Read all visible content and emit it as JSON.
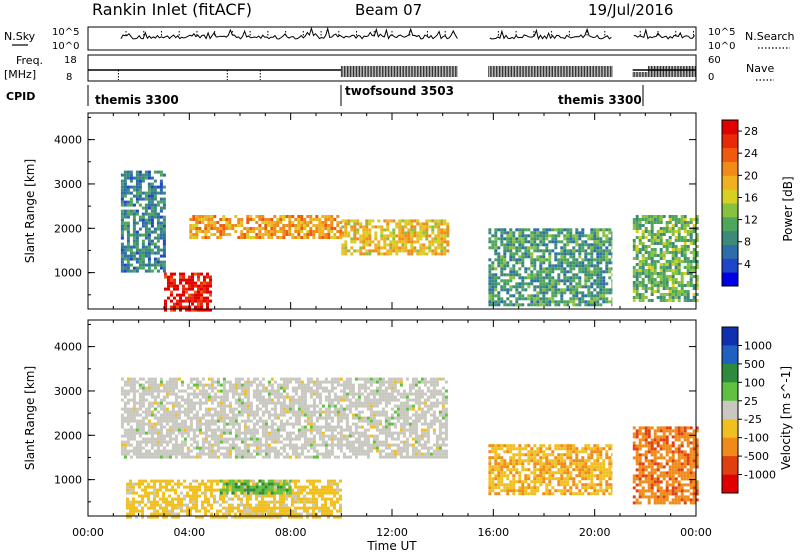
{
  "header": {
    "title": "Rankin Inlet (fitACF)",
    "beam": "Beam 07",
    "date": "19/Jul/2016"
  },
  "top_panel": {
    "nsky_label": "N.Sky",
    "nsky_ticks": [
      "10^5",
      "10^0"
    ],
    "nsearch_ticks": [
      "10^5",
      "10^0"
    ],
    "nsearch_label": "N.Search",
    "freq_label_1": "Freq.",
    "freq_label_2": "[MHz]",
    "freq_ticks": [
      "18",
      "8"
    ],
    "nave_ticks": [
      "60",
      "0"
    ],
    "nave_label": "Nave",
    "cpid_label": "CPID",
    "cpid_modes": [
      {
        "name": "themis 3300",
        "start_h": 0
      },
      {
        "name": "twofsound 3503",
        "start_h": 10
      },
      {
        "name": "themis 3300",
        "start_h": 21.6
      }
    ]
  },
  "time_axis": {
    "ticks": [
      "00:00",
      "04:00",
      "08:00",
      "12:00",
      "16:00",
      "20:00",
      "00:00"
    ],
    "xlabel": "Time UT"
  },
  "chart_data": [
    {
      "type": "heatmap",
      "title": "Power",
      "xlabel": "Time UT",
      "ylabel": "Slant Range [km]",
      "xlim_hours": [
        0,
        24
      ],
      "ylim_km": [
        180,
        4600
      ],
      "yticks": [
        "1000",
        "2000",
        "3000",
        "4000"
      ],
      "colorbar": {
        "label": "Power [dB]",
        "ticks": [
          "4",
          "8",
          "12",
          "16",
          "20",
          "24",
          "28"
        ],
        "range": [
          0,
          30
        ],
        "colors": [
          "#0000e6",
          "#1e46c8",
          "#2e6ea8",
          "#3d8a7a",
          "#4ea65a",
          "#88c040",
          "#d8d020",
          "#f0b020",
          "#f08a18",
          "#f05a10",
          "#e82a08",
          "#e00000"
        ]
      },
      "data_gaps_hours": [
        [
          14.6,
          15.8
        ],
        [
          20.7,
          21.5
        ]
      ],
      "echo_regions": [
        {
          "t": [
            1.3,
            3.0
          ],
          "range_km": [
            1000,
            3300
          ],
          "value_db": 8
        },
        {
          "t": [
            3.0,
            4.8
          ],
          "range_km": [
            180,
            1000
          ],
          "value_db": 28
        },
        {
          "t": [
            4.0,
            10.0
          ],
          "range_km": [
            1800,
            2300
          ],
          "value_db": 20
        },
        {
          "t": [
            10.0,
            14.2
          ],
          "range_km": [
            1400,
            2200
          ],
          "value_db": 18
        },
        {
          "t": [
            15.8,
            20.7
          ],
          "range_km": [
            300,
            2000
          ],
          "value_db": 10
        },
        {
          "t": [
            21.5,
            24.0
          ],
          "range_km": [
            400,
            2300
          ],
          "value_db": 12
        }
      ]
    },
    {
      "type": "heatmap",
      "title": "Velocity",
      "xlabel": "Time UT",
      "ylabel": "Slant Range [km]",
      "xlim_hours": [
        0,
        24
      ],
      "ylim_km": [
        180,
        4600
      ],
      "yticks": [
        "1000",
        "2000",
        "3000",
        "4000"
      ],
      "colorbar": {
        "label": "Velocity [m s^-1]",
        "ticks": [
          "1000",
          "500",
          "100",
          "25",
          "-25",
          "-100",
          "-500",
          "-1000"
        ],
        "range": [
          -1000,
          1000
        ],
        "colors": [
          "#1030b0",
          "#2060c0",
          "#2e8a3c",
          "#60c040",
          "#c8c8c0",
          "#f0c020",
          "#f08a18",
          "#e04010",
          "#e00000"
        ]
      },
      "data_gaps_hours": [
        [
          14.6,
          15.8
        ],
        [
          20.7,
          21.5
        ]
      ],
      "echo_regions": [
        {
          "t": [
            1.3,
            14.2
          ],
          "range_km": [
            1500,
            3300
          ],
          "value_ms": 0
        },
        {
          "t": [
            1.5,
            10.0
          ],
          "range_km": [
            180,
            1000
          ],
          "value_ms": -200
        },
        {
          "t": [
            5.2,
            8.0
          ],
          "range_km": [
            700,
            1000
          ],
          "value_ms": 300
        },
        {
          "t": [
            15.8,
            20.7
          ],
          "range_km": [
            700,
            1800
          ],
          "value_ms": -300
        },
        {
          "t": [
            21.5,
            24.0
          ],
          "range_km": [
            500,
            2200
          ],
          "value_ms": -500
        }
      ]
    }
  ]
}
